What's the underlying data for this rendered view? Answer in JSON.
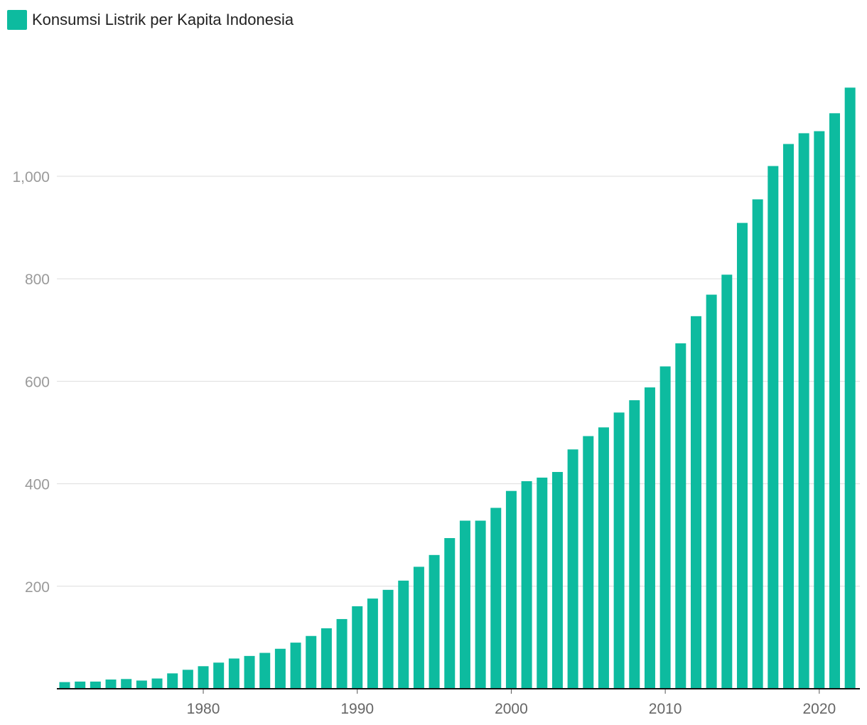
{
  "legend": {
    "label": "Konsumsi Listrik per Kapita Indonesia",
    "color": "#0dbb9f"
  },
  "chart_data": {
    "type": "bar",
    "title": "",
    "xlabel": "",
    "ylabel": "",
    "series": [
      {
        "name": "Konsumsi Listrik per Kapita Indonesia",
        "color": "#0dbb9f",
        "values": [
          13,
          14,
          14,
          18,
          19,
          16,
          20,
          30,
          37,
          44,
          51,
          59,
          64,
          70,
          78,
          90,
          103,
          118,
          136,
          161,
          176,
          193,
          211,
          238,
          261,
          294,
          328,
          328,
          353,
          386,
          405,
          412,
          423,
          467,
          493,
          510,
          539,
          563,
          588,
          629,
          674,
          727,
          769,
          808,
          909,
          955,
          1020,
          1063,
          1084,
          1088,
          1123,
          1173
        ]
      }
    ],
    "x": [
      1971,
      1972,
      1973,
      1974,
      1975,
      1976,
      1977,
      1978,
      1979,
      1980,
      1981,
      1982,
      1983,
      1984,
      1985,
      1986,
      1987,
      1988,
      1989,
      1990,
      1991,
      1992,
      1993,
      1994,
      1995,
      1996,
      1997,
      1998,
      1999,
      2000,
      2001,
      2002,
      2003,
      2004,
      2005,
      2006,
      2007,
      2008,
      2009,
      2010,
      2011,
      2012,
      2013,
      2014,
      2015,
      2016,
      2017,
      2018,
      2019,
      2020,
      2021,
      2022
    ],
    "x_ticks": [
      1980,
      1990,
      2000,
      2010,
      2020
    ],
    "y_ticks": [
      200,
      400,
      600,
      800,
      1000
    ],
    "y_tick_labels": [
      "200",
      "400",
      "600",
      "800",
      "1,000"
    ],
    "ylim": [
      0,
      1200
    ],
    "grid": true,
    "legend_position": "top-left"
  }
}
